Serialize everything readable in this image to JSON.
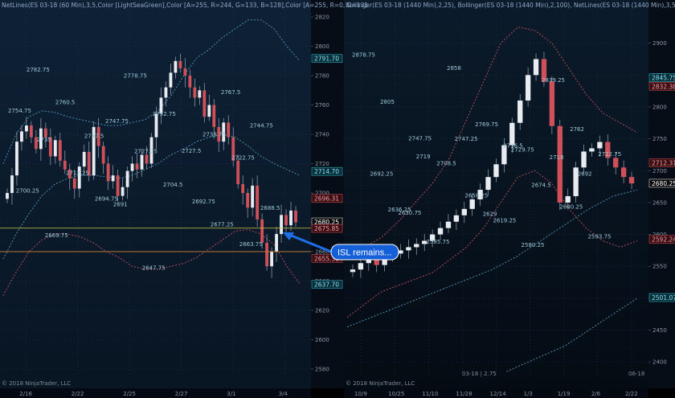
{
  "chart_data": [
    {
      "type": "candlestick",
      "panel": "left",
      "title": "NetLines(ES 03-18 (60 Min),3,5,Color [LightSeaGreen],Color [A=255, R=244, G=133, B=128],Color [A=255, R=0, G=131",
      "copyright": "© 2018 NinjaTrader, LLC",
      "x_ticks": [
        "2/16",
        "2/22",
        "2/25",
        "2/27",
        "3/1",
        "3/4"
      ],
      "y_ticks": [
        2580,
        2600,
        2620,
        2640,
        2660,
        2680,
        2700,
        2720,
        2740,
        2760,
        2780,
        2800,
        2820
      ],
      "ylim": [
        2575,
        2825
      ],
      "price_tags": [
        {
          "value": "2791.70",
          "style": "cyan"
        },
        {
          "value": "2714.70",
          "style": "cyan"
        },
        {
          "value": "2696.31",
          "style": "red"
        },
        {
          "value": "2680.25",
          "style": "dark"
        },
        {
          "value": "2675.85",
          "style": "red"
        },
        {
          "value": "2655.39",
          "style": "red"
        },
        {
          "value": "2637.70",
          "style": "cyan"
        }
      ],
      "horizontal_lines": [
        {
          "value": 2676,
          "color": "#c9c93a"
        },
        {
          "value": 2660,
          "color": "#d08030"
        }
      ],
      "annotations": [
        "2754.75",
        "2747.75",
        "2738.75",
        "2735",
        "2727.25",
        "2722.75",
        "2712.25",
        "2704.5",
        "2688.5",
        "2694.75",
        "2692.75",
        "2782.75",
        "2778.75",
        "2767.5",
        "2760.5",
        "2752.75",
        "2744.75",
        "2737.5",
        "2727.5",
        "2700.25",
        "2691",
        "2677.25",
        "2669.75",
        "2647.75",
        "2663.75"
      ],
      "series": [
        {
          "name": "close",
          "values": [
            2700,
            2712,
            2735,
            2742,
            2746,
            2738,
            2730,
            2744,
            2738,
            2725,
            2736,
            2722,
            2716,
            2710,
            2703,
            2718,
            2728,
            2712,
            2745,
            2732,
            2720,
            2708,
            2712,
            2698,
            2704,
            2715,
            2720,
            2716,
            2726,
            2720,
            2738,
            2754,
            2765,
            2772,
            2782,
            2790,
            2785,
            2780,
            2772,
            2765,
            2770,
            2752,
            2760,
            2745,
            2735,
            2748,
            2738,
            2722,
            2706,
            2700,
            2690,
            2705,
            2682,
            2666,
            2650,
            2660,
            2672,
            2685,
            2678,
            2688,
            2680
          ]
        },
        {
          "name": "bollinger_upper",
          "values": [
            2720,
            2740,
            2752,
            2756,
            2755,
            2752,
            2750,
            2748,
            2746,
            2746,
            2748,
            2750,
            2756,
            2766,
            2780,
            2792,
            2798,
            2806,
            2812,
            2818,
            2818,
            2812,
            2800,
            2790
          ]
        },
        {
          "name": "bollinger_mid",
          "values": [
            2655,
            2672,
            2686,
            2698,
            2706,
            2710,
            2712,
            2712,
            2711,
            2710,
            2712,
            2716,
            2720,
            2726,
            2730,
            2735,
            2738,
            2740,
            2738,
            2732,
            2725,
            2720,
            2716,
            2712
          ]
        },
        {
          "name": "bollinger_lower",
          "values": [
            2630,
            2646,
            2660,
            2668,
            2672,
            2672,
            2670,
            2666,
            2660,
            2656,
            2650,
            2648,
            2648,
            2650,
            2652,
            2656,
            2662,
            2668,
            2674,
            2675,
            2672,
            2665,
            2650,
            2638
          ]
        }
      ]
    },
    {
      "type": "candlestick",
      "panel": "right",
      "title": "Bollinger(ES 03-18 (1440 Min),2,25), Bollinger(ES 03-18 (1440 Min),2,100), NetLines(ES 03-18 (1440 Min),3,5,Color [L",
      "copyright": "© 2018 NinjaTrader, LLC",
      "x_ticks": [
        "10/9",
        "10/25",
        "11/10",
        "11/28",
        "12/14",
        "1/3",
        "1/19",
        "2/6",
        "2/22"
      ],
      "y_ticks": [
        2400,
        2450,
        2500,
        2550,
        2600,
        2650,
        2700,
        2750,
        2800,
        2850,
        2900
      ],
      "ylim": [
        2375,
        2950
      ],
      "price_tags": [
        {
          "value": "2845.75",
          "style": "cyan"
        },
        {
          "value": "2832.38",
          "style": "red"
        },
        {
          "value": "2712.31",
          "style": "red"
        },
        {
          "value": "2680.25",
          "style": "dark"
        },
        {
          "value": "2592.24",
          "style": "red"
        },
        {
          "value": "2501.07",
          "style": "cyan"
        }
      ],
      "bottom_info": "03-18 | 2.75",
      "corner_label": "06-18",
      "annotations": [
        "2878.75",
        "2858",
        "2839.25",
        "2805",
        "2769.75",
        "2762",
        "2747.75",
        "2736.5",
        "2722.75",
        "2708.5",
        "2674.5",
        "2692.25",
        "2658.25",
        "2640.25",
        "2630.75",
        "2619.25",
        "2593.75",
        "2585.75",
        "2580.25",
        "2565.25",
        "2747.25",
        "2718",
        "2636.25",
        "2629",
        "2692",
        "2719",
        "2729.75"
      ],
      "callout": "ISL remains...",
      "series": [
        {
          "name": "close",
          "values": [
            2545,
            2555,
            2560,
            2552,
            2566,
            2570,
            2575,
            2580,
            2585,
            2590,
            2600,
            2610,
            2620,
            2630,
            2640,
            2655,
            2670,
            2690,
            2710,
            2740,
            2775,
            2810,
            2850,
            2875,
            2840,
            2770,
            2650,
            2660,
            2705,
            2730,
            2735,
            2745,
            2720,
            2705,
            2690,
            2680
          ]
        },
        {
          "name": "bb25_upper",
          "values": [
            2570,
            2580,
            2595,
            2620,
            2650,
            2680,
            2720,
            2780,
            2840,
            2900,
            2925,
            2920,
            2900,
            2860,
            2820,
            2790,
            2775,
            2760
          ]
        },
        {
          "name": "bb25_lower",
          "values": [
            2470,
            2490,
            2510,
            2520,
            2530,
            2540,
            2560,
            2580,
            2610,
            2650,
            2690,
            2700,
            2680,
            2640,
            2610,
            2590,
            2580,
            2590
          ]
        },
        {
          "name": "bb100_lower",
          "values": [
            2385,
            2395,
            2405,
            2415,
            2425,
            2440,
            2455,
            2470,
            2485,
            2500
          ]
        },
        {
          "name": "bb100_mid",
          "values": [
            2455,
            2470,
            2485,
            2500,
            2515,
            2530,
            2545,
            2565,
            2590,
            2615,
            2640,
            2660,
            2670
          ]
        }
      ]
    }
  ]
}
